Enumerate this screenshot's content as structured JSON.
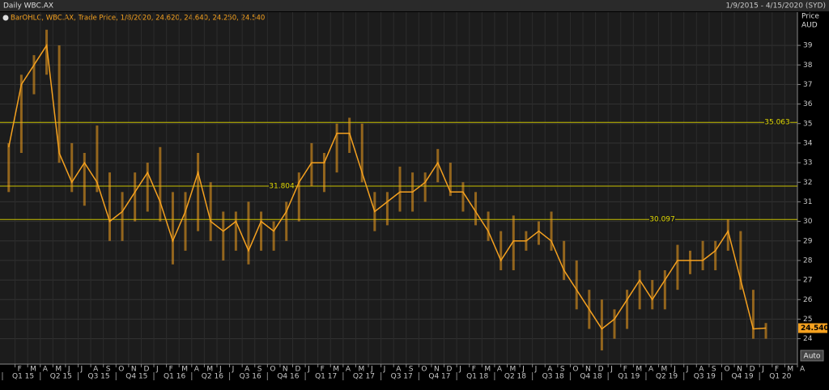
{
  "chart_data": {
    "type": "ohlc",
    "title": "Daily WBC.AX",
    "date_range": "1/9/2015 - 4/15/2020 (SYD)",
    "legend_text": "BarOHLC, WBC.AX, Trade Price, 1/8/2020, 24.620, 24.640, 24.250, 24.540",
    "y_label": [
      "Price",
      "AUD"
    ],
    "button": "Auto",
    "color": "#f5a11f",
    "x": [
      "2015-01",
      "2015-02",
      "2015-03",
      "2015-04",
      "2015-05",
      "2015-06",
      "2015-07",
      "2015-08",
      "2015-09",
      "2015-10",
      "2015-11",
      "2015-12",
      "2016-01",
      "2016-02",
      "2016-03",
      "2016-04",
      "2016-05",
      "2016-06",
      "2016-07",
      "2016-08",
      "2016-09",
      "2016-10",
      "2016-11",
      "2016-12",
      "2017-01",
      "2017-02",
      "2017-03",
      "2017-04",
      "2017-05",
      "2017-06",
      "2017-07",
      "2017-08",
      "2017-09",
      "2017-10",
      "2017-11",
      "2017-12",
      "2018-01",
      "2018-02",
      "2018-03",
      "2018-04",
      "2018-05",
      "2018-06",
      "2018-07",
      "2018-08",
      "2018-09",
      "2018-10",
      "2018-11",
      "2018-12",
      "2019-01",
      "2019-02",
      "2019-03",
      "2019-04",
      "2019-05",
      "2019-06",
      "2019-07",
      "2019-08",
      "2019-09",
      "2019-10",
      "2019-11",
      "2019-12",
      "2020-01"
    ],
    "high": [
      34.0,
      37.5,
      38.5,
      39.8,
      39.0,
      34.0,
      33.5,
      34.9,
      32.5,
      31.5,
      32.5,
      33.0,
      33.8,
      31.5,
      31.5,
      33.5,
      32.0,
      30.5,
      30.5,
      31.0,
      30.5,
      30.0,
      31.0,
      32.5,
      34.0,
      33.5,
      35.0,
      35.3,
      35.0,
      31.5,
      31.5,
      32.8,
      32.5,
      32.5,
      33.7,
      33.0,
      32.0,
      31.5,
      30.5,
      29.5,
      30.3,
      29.5,
      30.0,
      30.5,
      29.0,
      28.0,
      26.5,
      26.0,
      25.5,
      26.5,
      27.5,
      27.0,
      27.5,
      28.8,
      28.5,
      29.0,
      29.0,
      30.1,
      29.5,
      26.5,
      24.8
    ],
    "low": [
      31.5,
      33.5,
      36.5,
      37.5,
      33.0,
      31.5,
      30.8,
      31.5,
      29.0,
      29.0,
      30.0,
      30.5,
      30.0,
      27.8,
      28.5,
      29.5,
      29.0,
      28.0,
      28.5,
      27.8,
      28.5,
      28.5,
      29.0,
      30.0,
      31.8,
      31.5,
      32.5,
      33.5,
      32.0,
      29.5,
      29.8,
      30.5,
      30.5,
      31.0,
      32.0,
      31.3,
      30.5,
      29.8,
      29.0,
      27.5,
      27.5,
      28.5,
      28.8,
      28.5,
      27.0,
      25.5,
      24.5,
      23.4,
      24.0,
      24.5,
      25.5,
      25.5,
      25.5,
      26.5,
      27.3,
      27.5,
      27.5,
      28.5,
      26.5,
      24.0,
      24.0
    ],
    "close": [
      33.8,
      37.0,
      38.0,
      39.0,
      33.5,
      32.0,
      33.0,
      32.0,
      30.0,
      30.5,
      31.5,
      32.5,
      31.0,
      29.0,
      30.5,
      32.5,
      30.0,
      29.5,
      30.0,
      28.5,
      30.0,
      29.5,
      30.5,
      32.0,
      33.0,
      33.0,
      34.5,
      34.5,
      32.5,
      30.5,
      31.0,
      31.5,
      31.5,
      32.0,
      33.0,
      31.5,
      31.5,
      30.5,
      29.5,
      28.0,
      29.0,
      29.0,
      29.5,
      29.0,
      27.5,
      26.5,
      25.5,
      24.5,
      25.0,
      26.0,
      27.0,
      26.0,
      27.0,
      28.0,
      28.0,
      28.0,
      28.5,
      29.5,
      27.0,
      24.5,
      24.54
    ],
    "last_price": {
      "value": 24.54,
      "label": "24.540"
    },
    "hlines": [
      35.063,
      31.804,
      30.097
    ],
    "xlim": [
      "2015-01",
      "2020-04"
    ],
    "ylim": [
      22.7,
      40.7
    ],
    "yticks": [
      24,
      25,
      26,
      27,
      28,
      29,
      30,
      31,
      32,
      33,
      34,
      35,
      36,
      37,
      38,
      39
    ],
    "grid": true,
    "xticks": [
      {
        "value": "2015-02",
        "label": "F"
      },
      {
        "value": "2015-03",
        "label": "M"
      },
      {
        "value": "2015-04",
        "label": "A"
      },
      {
        "value": "2015-05",
        "label": "M"
      },
      {
        "value": "2015-06",
        "label": "J"
      },
      {
        "value": "2015-07",
        "label": "J"
      },
      {
        "value": "2015-08",
        "label": "A"
      },
      {
        "value": "2015-09",
        "label": "S"
      },
      {
        "value": "2015-10",
        "label": "O"
      },
      {
        "value": "2015-11",
        "label": "N"
      },
      {
        "value": "2015-12",
        "label": "D"
      },
      {
        "value": "2016-01",
        "label": "J"
      },
      {
        "value": "2016-02",
        "label": "F"
      },
      {
        "value": "2016-03",
        "label": "M"
      },
      {
        "value": "2016-04",
        "label": "A"
      },
      {
        "value": "2016-05",
        "label": "M"
      },
      {
        "value": "2016-06",
        "label": "J"
      },
      {
        "value": "2016-07",
        "label": "J"
      },
      {
        "value": "2016-08",
        "label": "A"
      },
      {
        "value": "2016-09",
        "label": "S"
      },
      {
        "value": "2016-10",
        "label": "O"
      },
      {
        "value": "2016-11",
        "label": "N"
      },
      {
        "value": "2016-12",
        "label": "D"
      },
      {
        "value": "2017-01",
        "label": "J"
      },
      {
        "value": "2017-02",
        "label": "F"
      },
      {
        "value": "2017-03",
        "label": "M"
      },
      {
        "value": "2017-04",
        "label": "A"
      },
      {
        "value": "2017-05",
        "label": "M"
      },
      {
        "value": "2017-06",
        "label": "J"
      },
      {
        "value": "2017-07",
        "label": "J"
      },
      {
        "value": "2017-08",
        "label": "A"
      },
      {
        "value": "2017-09",
        "label": "S"
      },
      {
        "value": "2017-10",
        "label": "O"
      },
      {
        "value": "2017-11",
        "label": "N"
      },
      {
        "value": "2017-12",
        "label": "D"
      },
      {
        "value": "2018-01",
        "label": "J"
      },
      {
        "value": "2018-02",
        "label": "F"
      },
      {
        "value": "2018-03",
        "label": "M"
      },
      {
        "value": "2018-04",
        "label": "A"
      },
      {
        "value": "2018-05",
        "label": "M"
      },
      {
        "value": "2018-06",
        "label": "J"
      },
      {
        "value": "2018-07",
        "label": "J"
      },
      {
        "value": "2018-08",
        "label": "A"
      },
      {
        "value": "2018-09",
        "label": "S"
      },
      {
        "value": "2018-10",
        "label": "O"
      },
      {
        "value": "2018-11",
        "label": "N"
      },
      {
        "value": "2018-12",
        "label": "D"
      },
      {
        "value": "2019-01",
        "label": "J"
      },
      {
        "value": "2019-02",
        "label": "F"
      },
      {
        "value": "2019-03",
        "label": "M"
      },
      {
        "value": "2019-04",
        "label": "A"
      },
      {
        "value": "2019-05",
        "label": "M"
      },
      {
        "value": "2019-06",
        "label": "J"
      },
      {
        "value": "2019-07",
        "label": "J"
      },
      {
        "value": "2019-08",
        "label": "A"
      },
      {
        "value": "2019-09",
        "label": "S"
      },
      {
        "value": "2019-10",
        "label": "O"
      },
      {
        "value": "2019-11",
        "label": "N"
      },
      {
        "value": "2019-12",
        "label": "D"
      },
      {
        "value": "2020-01",
        "label": "J"
      },
      {
        "value": "2020-02",
        "label": "F"
      },
      {
        "value": "2020-03",
        "label": "M"
      },
      {
        "value": "2020-04",
        "label": "A"
      }
    ],
    "quarter_ticks": [
      {
        "value": "2015-01",
        "label": "Q1 15"
      },
      {
        "value": "2015-04",
        "label": "Q2 15"
      },
      {
        "value": "2015-07",
        "label": "Q3 15"
      },
      {
        "value": "2015-10",
        "label": "Q4 15"
      },
      {
        "value": "2016-01",
        "label": "Q1 16"
      },
      {
        "value": "2016-04",
        "label": "Q2 16"
      },
      {
        "value": "2016-07",
        "label": "Q3 16"
      },
      {
        "value": "2016-10",
        "label": "Q4 16"
      },
      {
        "value": "2017-01",
        "label": "Q1 17"
      },
      {
        "value": "2017-04",
        "label": "Q2 17"
      },
      {
        "value": "2017-07",
        "label": "Q3 17"
      },
      {
        "value": "2017-10",
        "label": "Q4 17"
      },
      {
        "value": "2018-01",
        "label": "Q1 18"
      },
      {
        "value": "2018-04",
        "label": "Q2 18"
      },
      {
        "value": "2018-07",
        "label": "Q3 18"
      },
      {
        "value": "2018-10",
        "label": "Q4 18"
      },
      {
        "value": "2019-01",
        "label": "Q1 19"
      },
      {
        "value": "2019-04",
        "label": "Q2 19"
      },
      {
        "value": "2019-07",
        "label": "Q3 19"
      },
      {
        "value": "2019-10",
        "label": "Q4 19"
      },
      {
        "value": "2020-01",
        "label": "Q1 20"
      }
    ]
  }
}
